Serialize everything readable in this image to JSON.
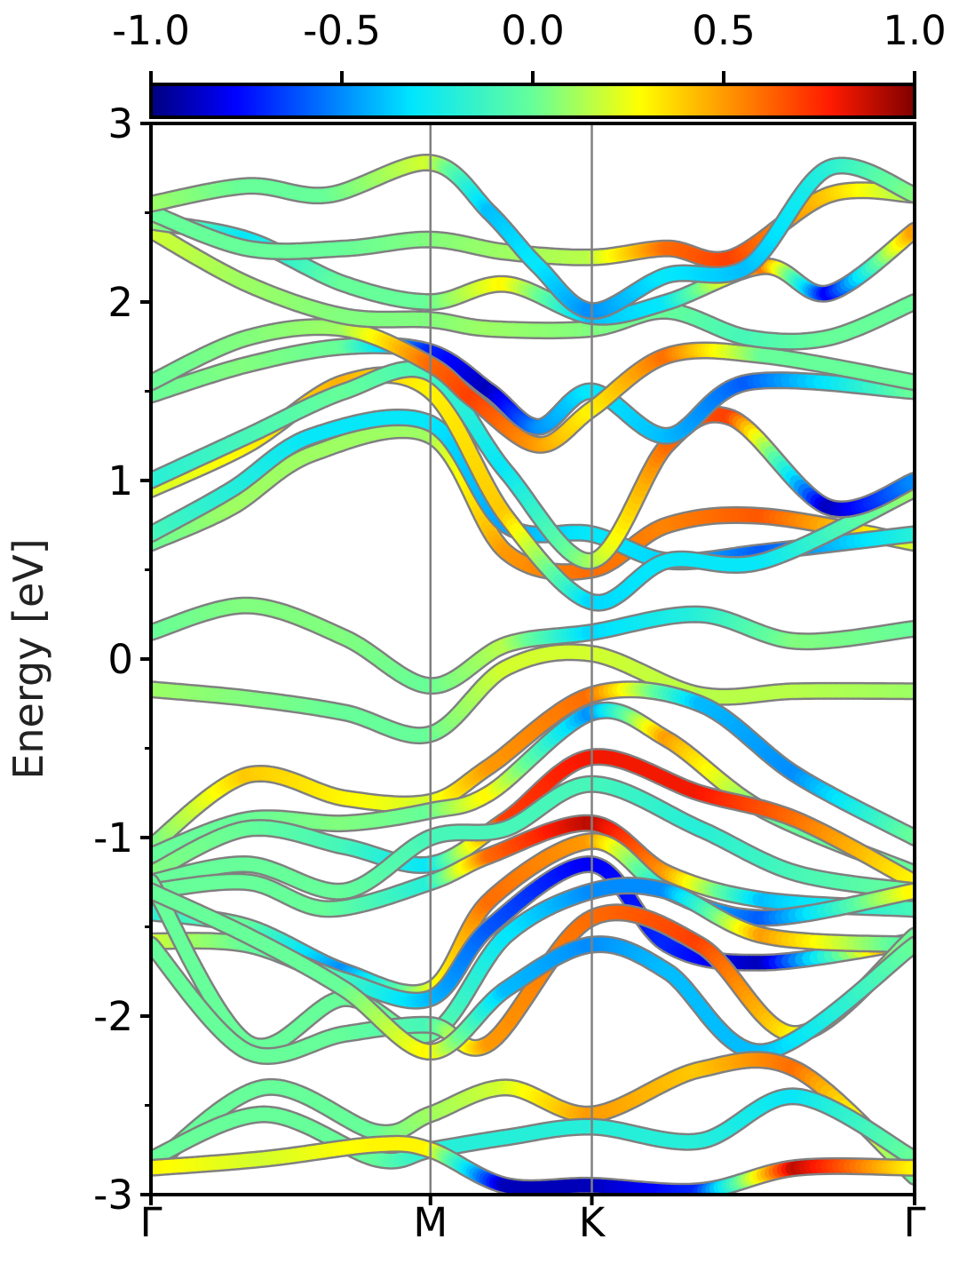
{
  "chart_data": {
    "type": "line",
    "ylabel": "Energy [eV]",
    "xlabel": "",
    "ylim": [
      -3,
      3
    ],
    "yticks": [
      "3",
      "2",
      "1",
      "0",
      "-1",
      "-2",
      "-3"
    ],
    "yticks_values": [
      3,
      2,
      1,
      0,
      -1,
      -2,
      -3
    ],
    "kpath": {
      "labels": [
        "Γ",
        "M",
        "K",
        "Γ"
      ],
      "positions": [
        0,
        0.866,
        1.366,
        2.366
      ]
    },
    "colorbar": {
      "colormap": "jet",
      "range": [
        -1.0,
        1.0
      ],
      "tick_labels": [
        "-1.0",
        "-0.5",
        "0.0",
        "0.5",
        "1.0"
      ],
      "tick_values": [
        -1.0,
        -0.5,
        0.0,
        0.5,
        1.0
      ]
    },
    "line_outline_color": "#808080",
    "kline_color": "#808080",
    "series": [
      {
        "x": [
          0,
          0.3,
          0.6,
          0.866,
          1.1,
          1.366,
          1.7,
          2.0,
          2.366
        ],
        "y": [
          0.15,
          0.3,
          0.12,
          -0.15,
          0.08,
          0.15,
          0.25,
          0.1,
          0.17
        ],
        "w": [
          0.0,
          0.05,
          0.05,
          0.0,
          0.15,
          -0.35,
          -0.2,
          0.05,
          0.0
        ]
      },
      {
        "x": [
          0,
          0.3,
          0.6,
          0.866,
          1.1,
          1.366,
          1.7,
          2.0,
          2.366
        ],
        "y": [
          -0.17,
          -0.22,
          -0.3,
          -0.42,
          -0.05,
          0.03,
          -0.2,
          -0.18,
          -0.18
        ],
        "w": [
          0.1,
          0.05,
          0.0,
          0.0,
          0.2,
          0.2,
          0.15,
          0.15,
          0.1
        ]
      },
      {
        "x": [
          0,
          0.25,
          0.5,
          0.866,
          1.1,
          1.366,
          1.6,
          1.9,
          2.366
        ],
        "y": [
          0.65,
          0.85,
          1.15,
          1.25,
          0.6,
          0.5,
          0.75,
          0.8,
          0.65
        ],
        "w": [
          0.0,
          0.1,
          0.1,
          0.1,
          0.5,
          0.6,
          0.55,
          0.65,
          0.2
        ]
      },
      {
        "x": [
          0,
          0.25,
          0.5,
          0.866,
          1.1,
          1.366,
          1.6,
          1.9,
          2.366
        ],
        "y": [
          0.7,
          0.95,
          1.25,
          1.32,
          0.75,
          0.7,
          0.55,
          0.6,
          0.7
        ],
        "w": [
          -0.1,
          -0.2,
          -0.3,
          -0.3,
          -0.45,
          -0.3,
          -0.35,
          -0.6,
          -0.2
        ]
      },
      {
        "x": [
          0,
          0.3,
          0.6,
          0.866,
          1.1,
          1.366,
          1.6,
          1.9,
          2.366
        ],
        "y": [
          0.95,
          1.2,
          1.55,
          1.5,
          0.8,
          0.32,
          0.55,
          0.55,
          0.95
        ],
        "w": [
          0.2,
          0.3,
          0.45,
          0.3,
          0.4,
          -0.35,
          -0.3,
          -0.3,
          0.1
        ]
      },
      {
        "x": [
          0,
          0.3,
          0.6,
          0.866,
          1.1,
          1.366,
          1.6,
          1.8,
          2.1,
          2.366
        ],
        "y": [
          1.0,
          1.25,
          1.5,
          1.6,
          1.05,
          0.55,
          1.2,
          1.35,
          0.85,
          1.0
        ],
        "w": [
          -0.2,
          -0.1,
          0.0,
          -0.1,
          -0.3,
          0.1,
          0.6,
          0.7,
          -0.9,
          -0.5
        ]
      },
      {
        "x": [
          0,
          0.3,
          0.6,
          0.866,
          1.05,
          1.2,
          1.366,
          1.6,
          1.85,
          2.366
        ],
        "y": [
          1.48,
          1.65,
          1.75,
          1.72,
          1.5,
          1.3,
          1.5,
          1.25,
          1.55,
          1.5
        ],
        "w": [
          0.0,
          0.05,
          0.0,
          -0.7,
          -0.9,
          -0.5,
          -0.3,
          -0.4,
          -0.6,
          0.0
        ]
      },
      {
        "x": [
          0,
          0.3,
          0.6,
          0.866,
          1.0,
          1.2,
          1.366,
          1.6,
          1.9,
          2.366
        ],
        "y": [
          1.55,
          1.8,
          1.85,
          1.65,
          1.45,
          1.2,
          1.4,
          1.7,
          1.7,
          1.55
        ],
        "w": [
          0.0,
          0.05,
          0.1,
          0.6,
          0.7,
          0.5,
          0.3,
          0.6,
          0.0,
          0.0
        ]
      },
      {
        "x": [
          0,
          0.3,
          0.6,
          0.866,
          1.05,
          1.366,
          1.6,
          1.85,
          2.1,
          2.366
        ],
        "y": [
          2.4,
          2.1,
          1.92,
          1.9,
          1.85,
          1.85,
          1.95,
          1.8,
          1.8,
          2.0
        ],
        "w": [
          0.2,
          0.1,
          0.05,
          0.05,
          0.1,
          0.05,
          0.0,
          -0.1,
          0.0,
          0.0
        ]
      },
      {
        "x": [
          0,
          0.3,
          0.6,
          0.866,
          1.1,
          1.366,
          1.6,
          1.9,
          2.1,
          2.366
        ],
        "y": [
          2.45,
          2.35,
          2.1,
          2.0,
          2.1,
          1.92,
          2.0,
          2.2,
          2.05,
          2.4
        ],
        "w": [
          0.1,
          -0.3,
          0.0,
          0.0,
          0.3,
          -0.4,
          -0.3,
          0.6,
          -0.8,
          0.5
        ]
      },
      {
        "x": [
          0,
          0.3,
          0.6,
          0.866,
          1.1,
          1.366,
          1.6,
          1.8,
          2.1,
          2.366
        ],
        "y": [
          2.5,
          2.3,
          2.3,
          2.35,
          2.28,
          2.25,
          2.3,
          2.25,
          2.6,
          2.6
        ],
        "w": [
          0.0,
          0.0,
          0.0,
          0.05,
          0.1,
          0.15,
          0.6,
          0.7,
          0.4,
          0.1
        ]
      },
      {
        "x": [
          0,
          0.3,
          0.55,
          0.866,
          1.05,
          1.2,
          1.366,
          1.6,
          1.85,
          2.1,
          2.366
        ],
        "y": [
          2.55,
          2.65,
          2.6,
          2.78,
          2.5,
          2.2,
          1.95,
          2.15,
          2.2,
          2.75,
          2.6
        ],
        "w": [
          0.1,
          0.0,
          0.0,
          0.2,
          -0.4,
          -0.3,
          -0.5,
          -0.3,
          -0.4,
          -0.2,
          0.05
        ]
      },
      {
        "x": [
          0,
          0.3,
          0.6,
          0.866,
          1.05,
          1.366,
          1.7,
          2.0,
          2.366
        ],
        "y": [
          -1.05,
          -0.65,
          -0.78,
          -0.8,
          -0.6,
          -0.2,
          -0.25,
          -0.65,
          -1.0
        ],
        "w": [
          0.0,
          0.4,
          0.3,
          0.2,
          0.5,
          0.6,
          -0.4,
          -0.5,
          0.0
        ]
      },
      {
        "x": [
          0,
          0.3,
          0.6,
          0.866,
          1.05,
          1.366,
          1.6,
          1.9,
          2.366
        ],
        "y": [
          -1.1,
          -0.9,
          -0.92,
          -0.85,
          -0.75,
          -0.3,
          -0.45,
          -0.85,
          -1.2
        ],
        "w": [
          0.0,
          0.0,
          0.05,
          0.0,
          0.3,
          -0.5,
          0.5,
          0.0,
          0.0
        ]
      },
      {
        "x": [
          0,
          0.3,
          0.6,
          0.866,
          1.1,
          1.366,
          1.7,
          2.0,
          2.366
        ],
        "y": [
          -1.2,
          -0.95,
          -1.05,
          -1.15,
          -0.9,
          -0.55,
          -0.75,
          -0.9,
          -1.25
        ],
        "w": [
          0.05,
          0.0,
          -0.1,
          -0.3,
          0.7,
          0.8,
          0.8,
          0.6,
          0.3
        ]
      },
      {
        "x": [
          0,
          0.3,
          0.6,
          0.866,
          1.1,
          1.366,
          1.7,
          2.0,
          2.366
        ],
        "y": [
          -1.25,
          -1.15,
          -1.3,
          -1.0,
          -0.95,
          -0.7,
          -0.95,
          -1.2,
          -1.3
        ],
        "w": [
          0.0,
          0.0,
          0.0,
          -0.1,
          -0.1,
          -0.1,
          -0.2,
          -0.1,
          0.0
        ]
      },
      {
        "x": [
          0,
          0.3,
          0.55,
          0.866,
          1.05,
          1.366,
          1.6,
          1.9,
          2.366
        ],
        "y": [
          -1.3,
          -1.25,
          -1.4,
          -1.25,
          -1.1,
          -0.92,
          -1.2,
          -1.35,
          -1.4
        ],
        "w": [
          0.0,
          0.0,
          0.0,
          -0.2,
          0.6,
          0.9,
          0.5,
          -0.4,
          -0.1
        ]
      },
      {
        "x": [
          0,
          0.3,
          0.6,
          0.866,
          1.05,
          1.366,
          1.6,
          1.9,
          2.366
        ],
        "y": [
          -1.42,
          -1.5,
          -1.75,
          -1.85,
          -1.35,
          -1.02,
          -1.3,
          -1.45,
          -1.3
        ],
        "w": [
          -0.2,
          0.0,
          -0.5,
          0.2,
          0.6,
          0.5,
          -0.3,
          -0.6,
          0.3
        ]
      },
      {
        "x": [
          0,
          0.3,
          0.6,
          0.866,
          1.05,
          1.366,
          1.6,
          1.9,
          2.366
        ],
        "y": [
          -1.58,
          -1.6,
          -1.8,
          -1.9,
          -1.5,
          -1.15,
          -1.6,
          -1.7,
          -1.58
        ],
        "w": [
          0.2,
          0.0,
          -0.1,
          -0.4,
          -0.6,
          -0.8,
          -0.7,
          -0.9,
          0.8
        ]
      },
      {
        "x": [
          0,
          0.3,
          0.6,
          0.866,
          1.1,
          1.366,
          1.6,
          1.9,
          2.366
        ],
        "y": [
          -1.25,
          -2.15,
          -1.9,
          -2.1,
          -1.55,
          -1.3,
          -1.3,
          -1.55,
          -1.6
        ],
        "w": [
          0.0,
          0.0,
          0.0,
          0.0,
          -0.3,
          -0.5,
          -0.5,
          0.5,
          -0.1
        ]
      },
      {
        "x": [
          0,
          0.3,
          0.6,
          0.866,
          1.05,
          1.366,
          1.7,
          2.0,
          2.366
        ],
        "y": [
          -1.6,
          -2.2,
          -2.1,
          -2.05,
          -2.15,
          -1.45,
          -1.6,
          -2.1,
          -1.55
        ],
        "w": [
          0.0,
          0.0,
          0.0,
          -0.1,
          0.5,
          0.6,
          0.7,
          0.3,
          0.0
        ]
      },
      {
        "x": [
          0,
          0.3,
          0.6,
          0.866,
          1.1,
          1.366,
          1.6,
          1.9,
          2.366
        ],
        "y": [
          -1.3,
          -1.55,
          -1.85,
          -2.2,
          -1.85,
          -1.6,
          -1.75,
          -2.2,
          -1.6
        ],
        "w": [
          0.0,
          0.0,
          0.0,
          0.3,
          -0.4,
          -0.5,
          -0.4,
          -0.4,
          0.0
        ]
      },
      {
        "x": [
          0,
          0.35,
          0.7,
          0.866,
          1.1,
          1.366,
          1.7,
          2.0,
          2.366
        ],
        "y": [
          -2.85,
          -2.4,
          -2.65,
          -2.55,
          -2.4,
          -2.55,
          -2.3,
          -2.3,
          -2.9
        ],
        "w": [
          0.0,
          0.0,
          0.0,
          0.1,
          0.2,
          0.5,
          0.4,
          0.6,
          0.0
        ]
      },
      {
        "x": [
          0,
          0.35,
          0.7,
          0.866,
          1.1,
          1.366,
          1.7,
          2.0,
          2.366
        ],
        "y": [
          -2.8,
          -2.55,
          -2.8,
          -2.75,
          -2.68,
          -2.62,
          -2.7,
          -2.45,
          -2.8
        ],
        "w": [
          0.0,
          0.0,
          0.0,
          -0.2,
          -0.2,
          -0.2,
          -0.2,
          -0.3,
          0.0
        ]
      },
      {
        "x": [
          0,
          0.35,
          0.7,
          0.866,
          1.1,
          1.366,
          1.7,
          2.0,
          2.366
        ],
        "y": [
          -2.85,
          -2.8,
          -2.72,
          -2.75,
          -2.95,
          -2.95,
          -2.98,
          -2.85,
          -2.85
        ],
        "w": [
          0.3,
          0.2,
          0.3,
          0.3,
          -0.9,
          -0.9,
          -0.7,
          0.9,
          0.3
        ]
      }
    ]
  }
}
